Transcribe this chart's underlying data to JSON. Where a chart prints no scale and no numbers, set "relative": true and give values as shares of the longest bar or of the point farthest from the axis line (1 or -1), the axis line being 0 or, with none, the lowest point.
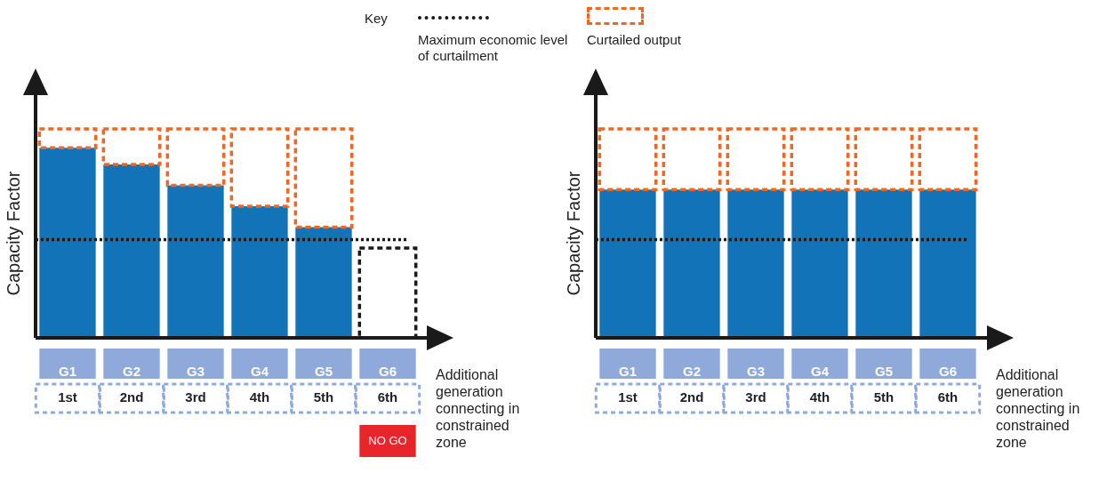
{
  "chart_data": [
    {
      "type": "bar",
      "stacked": true,
      "relative": true,
      "ylabel": "Capacity Factor",
      "xlabel": "Additional generation connecting in constrained zone",
      "legend_title": "Key",
      "legend": "top",
      "categories": [
        "G1",
        "G2",
        "G3",
        "G4",
        "G5",
        "G6"
      ],
      "series": [
        {
          "color": "#1273b9",
          "values": [
            0.91,
            0.83,
            0.73,
            0.63,
            0.53,
            null
          ]
        },
        {
          "name": "Curtailed output",
          "color": "#f26522",
          "line_style": "dashed",
          "values": [
            0.09,
            0.17,
            0.27,
            0.37,
            0.47,
            null
          ]
        },
        {
          "color": "#1a1a1a",
          "line_style": "dashed",
          "values": [
            null,
            null,
            null,
            null,
            null,
            0.43
          ]
        }
      ],
      "ref_lines": [
        {
          "axis": "y",
          "value": 0.47,
          "label": "Maximum economic level of curtailment",
          "color": "#1a1a1a",
          "line_style": "dotted"
        }
      ],
      "annotations": [
        "1st",
        "2nd",
        "3rd",
        "4th",
        "5th",
        "6th",
        "NO GO"
      ]
    },
    {
      "type": "bar",
      "stacked": true,
      "relative": true,
      "ylabel": "Capacity Factor",
      "xlabel": "Additional generation connecting in constrained zone",
      "categories": [
        "G1",
        "G2",
        "G3",
        "G4",
        "G5",
        "G6"
      ],
      "series": [
        {
          "color": "#1273b9",
          "values": [
            0.71,
            0.71,
            0.71,
            0.71,
            0.71,
            0.71
          ]
        },
        {
          "color": "#f26522",
          "line_style": "dashed",
          "values": [
            0.29,
            0.29,
            0.29,
            0.29,
            0.29,
            0.29
          ]
        }
      ],
      "ref_lines": [
        {
          "axis": "y",
          "value": 0.47,
          "color": "#1a1a1a",
          "line_style": "dotted"
        }
      ],
      "annotations": [
        "1st",
        "2nd",
        "3rd",
        "4th",
        "5th",
        "6th"
      ]
    }
  ]
}
